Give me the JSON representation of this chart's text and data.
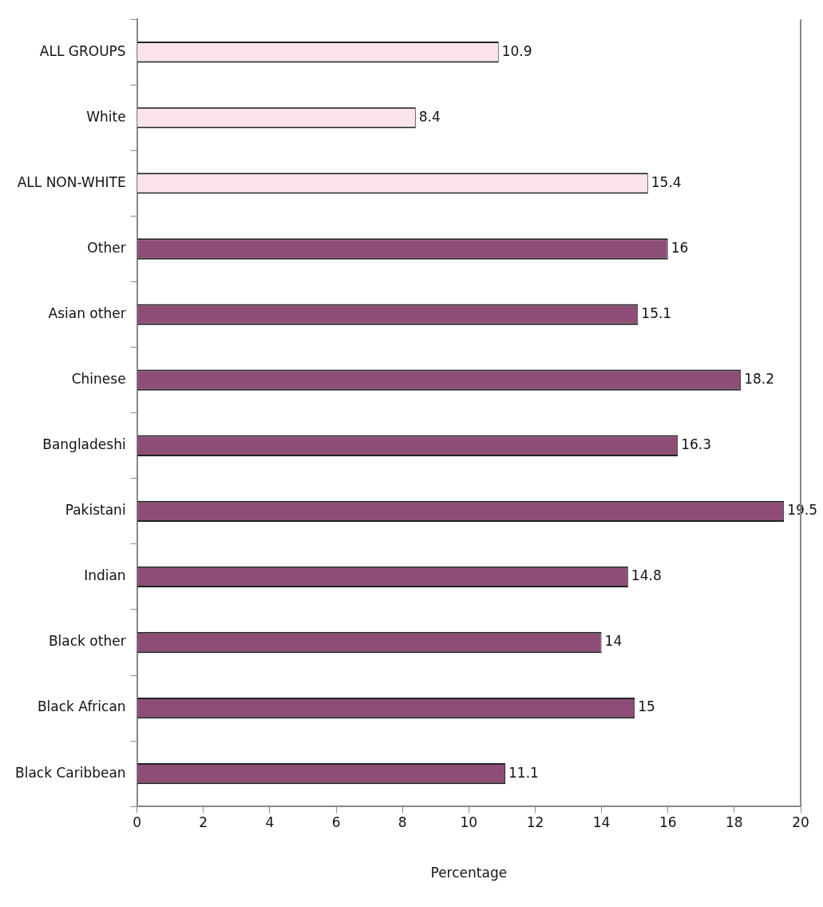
{
  "chart_data": {
    "type": "bar",
    "orientation": "horizontal",
    "xlabel": "Percentage",
    "categories": [
      "ALL GROUPS",
      "White",
      "ALL NON-WHITE",
      "Other",
      "Asian other",
      "Chinese",
      "Bangladeshi",
      "Pakistani",
      "Indian",
      "Black other",
      "Black African",
      "Black Caribbean"
    ],
    "values": [
      10.9,
      8.4,
      15.4,
      16,
      15.1,
      18.2,
      16.3,
      19.5,
      14.8,
      14,
      15,
      11.1
    ],
    "colors": [
      "#fbe4ea",
      "#fbe4ea",
      "#fbe4ea",
      "#8e4d76",
      "#8e4d76",
      "#8e4d76",
      "#8e4d76",
      "#8e4d76",
      "#8e4d76",
      "#8e4d76",
      "#8e4d76",
      "#8e4d76"
    ],
    "xlim": [
      0,
      20
    ],
    "xticks": [
      0,
      2,
      4,
      6,
      8,
      10,
      12,
      14,
      16,
      18,
      20
    ],
    "grid": false,
    "legend": false,
    "data_labels": true
  }
}
